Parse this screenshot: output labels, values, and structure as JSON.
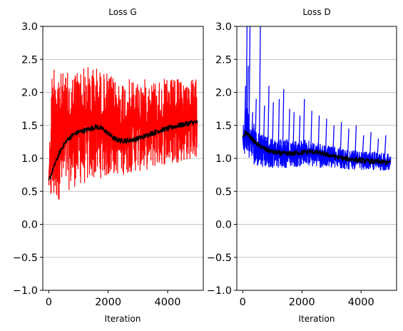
{
  "chart_data": [
    {
      "type": "line",
      "title": "Loss G",
      "xlabel": "Iteration",
      "ylabel": "",
      "xlim": [
        -200,
        5200
      ],
      "ylim": [
        -1.0,
        3.0
      ],
      "xticks": [
        0,
        2000,
        4000
      ],
      "xtick_labels": [
        "0",
        "2000",
        "4000"
      ],
      "yticks": [
        -1.0,
        -0.5,
        0.0,
        0.5,
        1.0,
        1.5,
        2.0,
        2.5,
        3.0
      ],
      "ytick_labels": [
        "−1.0",
        "−0.5",
        "0.0",
        "0.5",
        "1.0",
        "1.5",
        "2.0",
        "2.5",
        "3.0"
      ],
      "grid": "y",
      "series": [
        {
          "color": "#ff0000",
          "role": "raw",
          "x": [
            0,
            100,
            200,
            300,
            400,
            500,
            600,
            800,
            1000,
            1200,
            1400,
            1600,
            1800,
            2000,
            2200,
            2400,
            2600,
            2800,
            3000,
            3200,
            3400,
            3600,
            3800,
            4000,
            4200,
            4400,
            4600,
            4800,
            5000
          ],
          "lower": [
            0.55,
            0.2,
            0.3,
            0.35,
            0.4,
            0.45,
            0.5,
            0.55,
            0.6,
            0.6,
            0.65,
            0.7,
            0.7,
            0.7,
            0.75,
            0.75,
            0.75,
            0.8,
            0.8,
            0.8,
            0.85,
            0.85,
            0.9,
            0.9,
            0.9,
            0.95,
            0.95,
            1.0,
            1.0
          ],
          "upper": [
            0.85,
            2.3,
            2.6,
            2.5,
            2.3,
            2.3,
            2.3,
            2.3,
            2.4,
            2.4,
            2.4,
            2.4,
            2.3,
            2.3,
            2.2,
            2.2,
            2.2,
            2.2,
            2.2,
            2.2,
            2.2,
            2.2,
            2.2,
            2.2,
            2.2,
            2.2,
            2.2,
            2.2,
            2.2
          ]
        },
        {
          "color": "#000000",
          "role": "smoothed",
          "x": [
            0,
            100,
            200,
            300,
            400,
            500,
            600,
            800,
            1000,
            1200,
            1400,
            1600,
            1800,
            2000,
            2200,
            2400,
            2600,
            2800,
            3000,
            3200,
            3400,
            3600,
            3800,
            4000,
            4200,
            4400,
            4600,
            4800,
            5000
          ],
          "values": [
            0.65,
            0.78,
            0.9,
            1.02,
            1.12,
            1.2,
            1.27,
            1.35,
            1.4,
            1.42,
            1.45,
            1.48,
            1.45,
            1.38,
            1.3,
            1.27,
            1.27,
            1.28,
            1.3,
            1.33,
            1.37,
            1.4,
            1.43,
            1.45,
            1.48,
            1.5,
            1.52,
            1.54,
            1.55
          ]
        }
      ]
    },
    {
      "type": "line",
      "title": "Loss D",
      "xlabel": "Iteration",
      "ylabel": "",
      "xlim": [
        -200,
        5200
      ],
      "ylim": [
        -1.0,
        3.0
      ],
      "xticks": [
        0,
        2000,
        4000
      ],
      "xtick_labels": [
        "0",
        "2000",
        "4000"
      ],
      "yticks": [
        -1.0,
        -0.5,
        0.0,
        0.5,
        1.0,
        1.5,
        2.0,
        2.5,
        3.0
      ],
      "ytick_labels": [
        "−1.0",
        "−0.5",
        "0.0",
        "0.5",
        "1.0",
        "1.5",
        "2.0",
        "2.5",
        "3.0"
      ],
      "grid": "y",
      "series": [
        {
          "color": "#0000ff",
          "role": "raw",
          "x": [
            0,
            100,
            200,
            300,
            400,
            600,
            800,
            1000,
            1200,
            1400,
            1600,
            1800,
            2000,
            2200,
            2400,
            2600,
            2800,
            3000,
            3200,
            3400,
            3600,
            3800,
            4000,
            4200,
            4400,
            4600,
            4800,
            5000
          ],
          "lower": [
            1.1,
            1.05,
            1.0,
            0.95,
            0.9,
            0.88,
            0.87,
            0.86,
            0.86,
            0.86,
            0.87,
            0.87,
            0.88,
            0.88,
            0.87,
            0.86,
            0.85,
            0.85,
            0.84,
            0.84,
            0.83,
            0.83,
            0.83,
            0.83,
            0.82,
            0.82,
            0.82,
            0.82
          ],
          "upper": [
            1.5,
            1.8,
            1.7,
            1.6,
            1.5,
            1.4,
            1.35,
            1.32,
            1.3,
            1.3,
            1.28,
            1.28,
            1.28,
            1.27,
            1.25,
            1.22,
            1.2,
            1.18,
            1.17,
            1.15,
            1.13,
            1.12,
            1.1,
            1.1,
            1.1,
            1.1,
            1.08,
            1.08
          ],
          "spikes": [
            {
              "x": 60,
              "y": 2.1
            },
            {
              "x": 110,
              "y": 3.0
            },
            {
              "x": 150,
              "y": 2.4
            },
            {
              "x": 210,
              "y": 3.0
            },
            {
              "x": 300,
              "y": 1.7
            },
            {
              "x": 420,
              "y": 1.9
            },
            {
              "x": 560,
              "y": 3.0
            },
            {
              "x": 700,
              "y": 1.8
            },
            {
              "x": 850,
              "y": 2.1
            },
            {
              "x": 1000,
              "y": 1.85
            },
            {
              "x": 1200,
              "y": 1.9
            },
            {
              "x": 1350,
              "y": 2.05
            },
            {
              "x": 1550,
              "y": 1.75
            },
            {
              "x": 1700,
              "y": 1.7
            },
            {
              "x": 1900,
              "y": 1.65
            },
            {
              "x": 2050,
              "y": 1.9
            },
            {
              "x": 2300,
              "y": 1.72
            },
            {
              "x": 2550,
              "y": 1.65
            },
            {
              "x": 2800,
              "y": 1.6
            },
            {
              "x": 3050,
              "y": 1.5
            },
            {
              "x": 3300,
              "y": 1.55
            },
            {
              "x": 3550,
              "y": 1.45
            },
            {
              "x": 3800,
              "y": 1.5
            },
            {
              "x": 4050,
              "y": 1.35
            },
            {
              "x": 4300,
              "y": 1.4
            },
            {
              "x": 4550,
              "y": 1.3
            },
            {
              "x": 4800,
              "y": 1.35
            }
          ]
        },
        {
          "color": "#000000",
          "role": "smoothed",
          "x": [
            0,
            100,
            200,
            300,
            400,
            600,
            800,
            1000,
            1200,
            1400,
            1600,
            1800,
            2000,
            2200,
            2400,
            2600,
            2800,
            3000,
            3200,
            3400,
            3600,
            3800,
            4000,
            4200,
            4400,
            4600,
            4800,
            5000
          ],
          "values": [
            1.3,
            1.4,
            1.35,
            1.3,
            1.25,
            1.18,
            1.13,
            1.1,
            1.08,
            1.07,
            1.07,
            1.08,
            1.09,
            1.1,
            1.1,
            1.08,
            1.06,
            1.04,
            1.02,
            1.0,
            0.99,
            0.98,
            0.97,
            0.96,
            0.95,
            0.95,
            0.94,
            0.94
          ]
        }
      ]
    }
  ]
}
